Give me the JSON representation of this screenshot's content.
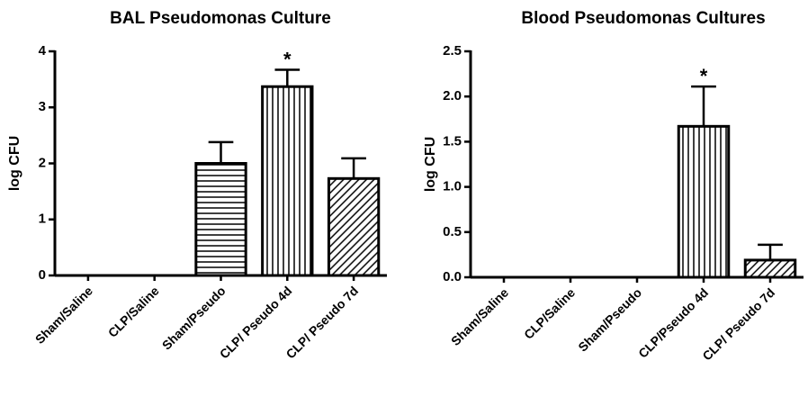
{
  "chart_data": [
    {
      "type": "bar",
      "title": "BAL Pseudomonas Culture",
      "y_label": "log CFU",
      "categories": [
        "Sham/Saline",
        "CLP/Saline",
        "Sham/Pseudo",
        "CLP/ Pseudo 4d",
        "CLP/ Pseudo 7d"
      ],
      "values": [
        0,
        0,
        2.0,
        3.37,
        1.73
      ],
      "errors": [
        0,
        0,
        0.38,
        0.3,
        0.36
      ],
      "hatches": [
        "none",
        "none",
        "horizontal",
        "vertical",
        "diagonal"
      ],
      "color": "#000000",
      "ylim": [
        0,
        4
      ],
      "yticks": [
        0,
        1,
        2,
        3,
        4
      ],
      "annotations": [
        {
          "text": "*",
          "category": "CLP/ Pseudo 4d"
        }
      ]
    },
    {
      "type": "bar",
      "title": "Blood Pseudomonas Cultures",
      "y_label": "log  CFU",
      "categories": [
        "Sham/Saline",
        "CLP/Saline",
        "Sham/Pseudo",
        "CLP/Pseudo 4d",
        "CLP/ Pseudo 7d"
      ],
      "values": [
        0,
        0,
        0,
        1.67,
        0.19
      ],
      "errors": [
        0,
        0,
        0,
        0.44,
        0.17
      ],
      "hatches": [
        "none",
        "none",
        "none",
        "vertical",
        "diagonal"
      ],
      "color": "#000000",
      "ylim": [
        0,
        2.5
      ],
      "yticks": [
        {
          "value": 0,
          "label": "0.0"
        },
        0.5,
        {
          "value": 1,
          "label": "1.0"
        },
        1.5,
        {
          "value": 2,
          "label": "2.0"
        },
        2.5
      ],
      "annotations": [
        {
          "text": "*",
          "category": "CLP/Pseudo 4d"
        }
      ]
    }
  ]
}
